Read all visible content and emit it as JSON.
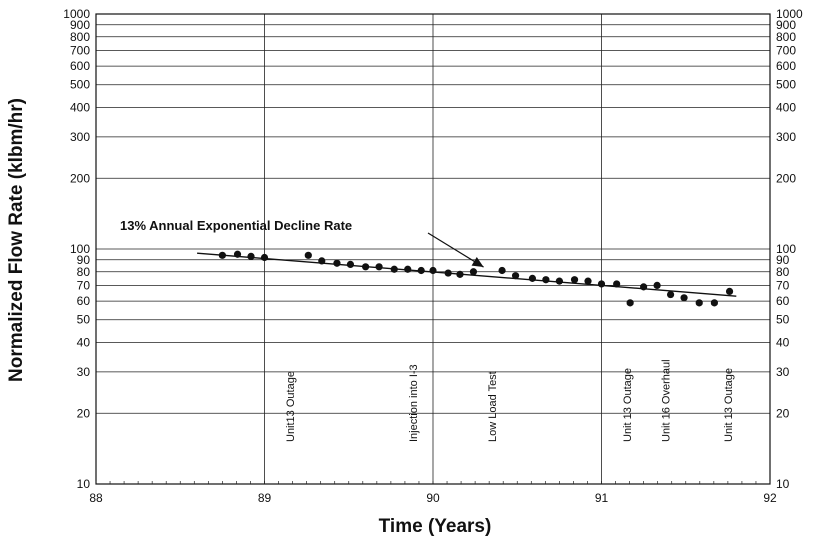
{
  "chart_data": {
    "type": "scatter",
    "title": "",
    "xlabel": "Time (Years)",
    "ylabel": "Normalized Flow Rate (klbm/hr)",
    "xlim": [
      88,
      92
    ],
    "ylim": [
      10,
      1000
    ],
    "yscale": "log",
    "grid": true,
    "x_ticks": [
      "88",
      "89",
      "90",
      "91",
      "92"
    ],
    "y_ticks_left": [
      "10",
      "20",
      "30",
      "40",
      "50",
      "60",
      "70",
      "80",
      "90",
      "100",
      "200",
      "300",
      "400",
      "500",
      "600",
      "700",
      "800",
      "900",
      "1000"
    ],
    "y_ticks_right": [
      "10",
      "20",
      "30",
      "40",
      "50",
      "60",
      "70",
      "80",
      "90",
      "100",
      "200",
      "300",
      "400",
      "500",
      "600",
      "700",
      "800",
      "900",
      "1000"
    ],
    "y_tick_values": [
      10,
      20,
      30,
      40,
      50,
      60,
      70,
      80,
      90,
      100,
      200,
      300,
      400,
      500,
      600,
      700,
      800,
      900,
      1000
    ],
    "series": [
      {
        "values": [
          [
            88.75,
            94
          ],
          [
            88.84,
            95
          ],
          [
            88.92,
            93
          ],
          [
            89.0,
            92
          ],
          [
            89.26,
            94
          ],
          [
            89.34,
            89
          ],
          [
            89.43,
            87
          ],
          [
            89.51,
            86
          ],
          [
            89.6,
            84
          ],
          [
            89.68,
            84
          ],
          [
            89.77,
            82
          ],
          [
            89.85,
            82
          ],
          [
            89.93,
            81
          ],
          [
            90.0,
            81
          ],
          [
            90.09,
            79
          ],
          [
            90.16,
            78
          ],
          [
            90.24,
            80
          ],
          [
            90.41,
            81
          ],
          [
            90.49,
            77
          ],
          [
            90.59,
            75
          ],
          [
            90.67,
            74
          ],
          [
            90.75,
            73
          ],
          [
            90.84,
            74
          ],
          [
            90.92,
            73
          ],
          [
            91.0,
            71
          ],
          [
            91.09,
            71
          ],
          [
            91.17,
            59
          ],
          [
            91.25,
            69
          ],
          [
            91.33,
            70
          ],
          [
            91.41,
            64
          ],
          [
            91.49,
            62
          ],
          [
            91.58,
            59
          ],
          [
            91.67,
            59
          ],
          [
            91.76,
            66
          ]
        ]
      }
    ],
    "trend_line": {
      "from": [
        88.6,
        96
      ],
      "to": [
        91.8,
        63
      ]
    },
    "annotations": [
      {
        "text": "13% Annual Exponential Decline Rate",
        "arrow_to": [
          90.3,
          79
        ]
      }
    ],
    "events": [
      {
        "x": 89.15,
        "label": "Unit13 Outage",
        "vline": false
      },
      {
        "x": 89.88,
        "label": "Injection into I-3",
        "vline": false
      },
      {
        "x": 90.35,
        "label": "Low Load Test",
        "vline": false
      },
      {
        "x": 91.15,
        "label": "Unit 13 Outage",
        "vline": false
      },
      {
        "x": 91.38,
        "label": "Unit 16 Overhaul",
        "vline": false
      },
      {
        "x": 91.75,
        "label": "Unit 13 Outage",
        "vline": false
      }
    ]
  }
}
